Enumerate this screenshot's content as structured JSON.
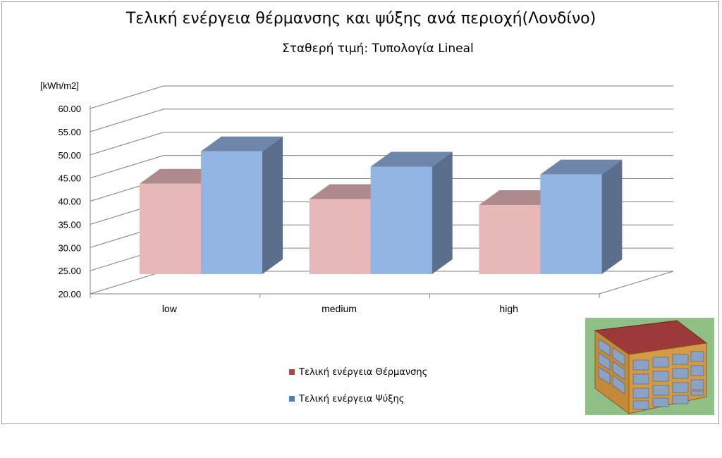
{
  "title": "Τελική ενέργεια θέρμανσης και ψύξης ανά περιοχή(Λονδίνο)",
  "subtitle": "Σταθερή τιμή: Τυπολογία Lineal",
  "chart_data": {
    "type": "bar",
    "title": "Τελική ενέργεια θέρμανσης και ψύξης ανά περιοχή(Λονδίνο)",
    "subtitle": "Σταθερή τιμή: Τυπολογία Lineal",
    "ylabel": "[kWh/m2]",
    "xlabel": "",
    "categories": [
      "low",
      "medium",
      "high"
    ],
    "series": [
      {
        "name": "Τελική ενέργεια Θέρμανσης",
        "values": [
          39.5,
          36.2,
          34.9
        ],
        "color": "#e8b8b8"
      },
      {
        "name": "Τελική ενέργεια Ψύξης",
        "values": [
          46.5,
          43.2,
          41.5
        ],
        "color": "#93b3e2"
      }
    ],
    "ylim": [
      20,
      60
    ],
    "yticks": [
      "20.00",
      "25.00",
      "30.00",
      "35.00",
      "40.00",
      "45.00",
      "50.00",
      "55.00",
      "60.00"
    ],
    "grid": true,
    "legend_position": "bottom-center",
    "style": "3d-column"
  },
  "legend": [
    {
      "label": "Τελική ενέργεια Θέρμανσης",
      "color": "#a84848"
    },
    {
      "label": "Τελική ενέργεια Ψύξης",
      "color": "#4f81bd"
    }
  ]
}
